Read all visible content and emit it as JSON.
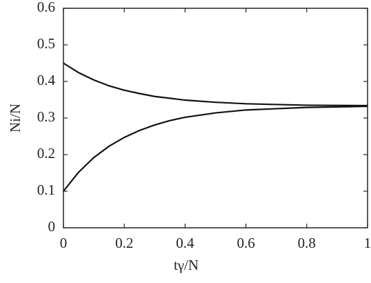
{
  "chart_data": {
    "type": "line",
    "x_label": "tγ/N",
    "y_label": "Ni/N",
    "x": [
      0,
      0.05,
      0.1,
      0.15,
      0.2,
      0.25,
      0.3,
      0.35,
      0.4,
      0.5,
      0.6,
      0.8,
      1
    ],
    "series": [
      {
        "color": "#111111",
        "values": [
          0.45,
          0.424,
          0.404,
          0.388,
          0.376,
          0.367,
          0.359,
          0.354,
          0.349,
          0.343,
          0.339,
          0.335,
          0.334
        ]
      },
      {
        "color": "#111111",
        "values": [
          0.1,
          0.152,
          0.192,
          0.223,
          0.247,
          0.266,
          0.281,
          0.293,
          0.302,
          0.314,
          0.322,
          0.329,
          0.332
        ]
      }
    ],
    "xlim": [
      0,
      1
    ],
    "xticks": [
      0,
      0.2,
      0.4,
      0.6,
      0.8,
      1
    ],
    "ylim": [
      0,
      0.6
    ],
    "yticks": [
      0,
      0.1,
      0.2,
      0.3,
      0.4,
      0.5,
      0.6
    ],
    "grid": false
  }
}
